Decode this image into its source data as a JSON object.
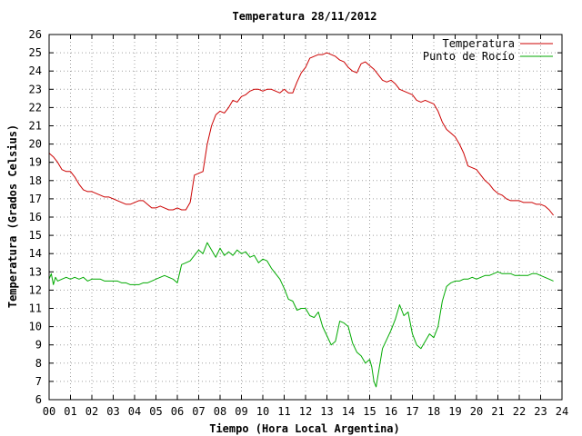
{
  "chart_data": {
    "type": "line",
    "title": "Temperatura 28/11/2012",
    "xlabel": "Tiempo (Hora Local Argentina)",
    "ylabel": "Temperatura (Grados Celsius)",
    "xlim": [
      0,
      24
    ],
    "ylim": [
      6,
      26
    ],
    "xticks": [
      0,
      1,
      2,
      3,
      4,
      5,
      6,
      7,
      8,
      9,
      10,
      11,
      12,
      13,
      14,
      15,
      16,
      17,
      18,
      19,
      20,
      21,
      22,
      23,
      24
    ],
    "xtick_labels": [
      "00",
      "01",
      "02",
      "03",
      "04",
      "05",
      "06",
      "07",
      "08",
      "09",
      "10",
      "11",
      "12",
      "13",
      "14",
      "15",
      "16",
      "17",
      "18",
      "19",
      "20",
      "21",
      "22",
      "23",
      "24"
    ],
    "yticks": [
      6,
      7,
      8,
      9,
      10,
      11,
      12,
      13,
      14,
      15,
      16,
      17,
      18,
      19,
      20,
      21,
      22,
      23,
      24,
      25,
      26
    ],
    "grid": true,
    "legend_position": "top-right",
    "series": [
      {
        "name": "Temperatura",
        "color": "#cc0000",
        "x": [
          0.0,
          0.2,
          0.4,
          0.6,
          0.8,
          1.0,
          1.2,
          1.4,
          1.6,
          1.8,
          2.0,
          2.2,
          2.4,
          2.6,
          2.8,
          3.0,
          3.2,
          3.4,
          3.6,
          3.8,
          4.0,
          4.2,
          4.4,
          4.6,
          4.8,
          5.0,
          5.2,
          5.4,
          5.6,
          5.8,
          6.0,
          6.2,
          6.4,
          6.6,
          6.8,
          7.0,
          7.2,
          7.4,
          7.6,
          7.8,
          8.0,
          8.2,
          8.4,
          8.6,
          8.8,
          9.0,
          9.2,
          9.4,
          9.6,
          9.8,
          10.0,
          10.2,
          10.4,
          10.6,
          10.8,
          11.0,
          11.2,
          11.4,
          11.6,
          11.8,
          12.0,
          12.2,
          12.4,
          12.6,
          12.8,
          13.0,
          13.2,
          13.4,
          13.6,
          13.8,
          14.0,
          14.2,
          14.4,
          14.6,
          14.8,
          15.0,
          15.2,
          15.4,
          15.6,
          15.8,
          16.0,
          16.2,
          16.4,
          16.6,
          16.8,
          17.0,
          17.2,
          17.4,
          17.6,
          17.8,
          18.0,
          18.2,
          18.4,
          18.6,
          18.8,
          19.0,
          19.2,
          19.4,
          19.6,
          19.8,
          20.0,
          20.2,
          20.4,
          20.6,
          20.8,
          21.0,
          21.2,
          21.4,
          21.6,
          21.8,
          22.0,
          22.2,
          22.4,
          22.6,
          22.8,
          23.0,
          23.2,
          23.4,
          23.6
        ],
        "y": [
          19.5,
          19.3,
          19.0,
          18.6,
          18.5,
          18.5,
          18.2,
          17.8,
          17.5,
          17.4,
          17.4,
          17.3,
          17.2,
          17.1,
          17.1,
          17.0,
          16.9,
          16.8,
          16.7,
          16.7,
          16.8,
          16.9,
          16.9,
          16.7,
          16.5,
          16.5,
          16.6,
          16.5,
          16.4,
          16.4,
          16.5,
          16.4,
          16.4,
          16.8,
          18.3,
          18.4,
          18.5,
          20.0,
          21.0,
          21.6,
          21.8,
          21.7,
          22.0,
          22.4,
          22.3,
          22.6,
          22.7,
          22.9,
          23.0,
          23.0,
          22.9,
          23.0,
          23.0,
          22.9,
          22.8,
          23.0,
          22.8,
          22.8,
          23.4,
          23.9,
          24.2,
          24.7,
          24.8,
          24.9,
          24.9,
          25.0,
          24.9,
          24.8,
          24.6,
          24.5,
          24.2,
          24.0,
          23.9,
          24.4,
          24.5,
          24.3,
          24.1,
          23.8,
          23.5,
          23.4,
          23.5,
          23.3,
          23.0,
          22.9,
          22.8,
          22.7,
          22.4,
          22.3,
          22.4,
          22.3,
          22.2,
          21.8,
          21.2,
          20.8,
          20.6,
          20.4,
          20.0,
          19.5,
          18.8,
          18.7,
          18.6,
          18.3,
          18.0,
          17.8,
          17.5,
          17.3,
          17.2,
          17.0,
          16.9,
          16.9,
          16.9,
          16.8,
          16.8,
          16.8,
          16.7,
          16.7,
          16.6,
          16.4,
          16.1
        ],
        "legend_label": "Temperatura"
      },
      {
        "name": "Punto de Rocío",
        "color": "#00aa00",
        "x": [
          0.0,
          0.1,
          0.2,
          0.3,
          0.4,
          0.6,
          0.8,
          1.0,
          1.2,
          1.4,
          1.6,
          1.8,
          2.0,
          2.2,
          2.4,
          2.6,
          2.8,
          3.0,
          3.2,
          3.4,
          3.6,
          3.8,
          4.0,
          4.2,
          4.4,
          4.6,
          4.8,
          5.0,
          5.2,
          5.4,
          5.6,
          5.8,
          6.0,
          6.2,
          6.4,
          6.6,
          6.8,
          7.0,
          7.2,
          7.4,
          7.6,
          7.8,
          8.0,
          8.2,
          8.4,
          8.6,
          8.8,
          9.0,
          9.2,
          9.4,
          9.6,
          9.8,
          10.0,
          10.2,
          10.4,
          10.6,
          10.8,
          11.0,
          11.2,
          11.4,
          11.6,
          11.8,
          12.0,
          12.2,
          12.4,
          12.6,
          12.8,
          13.0,
          13.2,
          13.4,
          13.6,
          13.8,
          14.0,
          14.2,
          14.4,
          14.6,
          14.8,
          15.0,
          15.1,
          15.2,
          15.3,
          15.4,
          15.6,
          15.8,
          16.0,
          16.2,
          16.4,
          16.6,
          16.8,
          17.0,
          17.2,
          17.4,
          17.6,
          17.8,
          18.0,
          18.2,
          18.4,
          18.6,
          18.8,
          19.0,
          19.2,
          19.4,
          19.6,
          19.8,
          20.0,
          20.2,
          20.4,
          20.6,
          20.8,
          21.0,
          21.2,
          21.4,
          21.6,
          21.8,
          22.0,
          22.2,
          22.4,
          22.6,
          22.8,
          23.0,
          23.2,
          23.4,
          23.6
        ],
        "y": [
          12.6,
          12.9,
          12.3,
          12.7,
          12.5,
          12.6,
          12.7,
          12.6,
          12.7,
          12.6,
          12.7,
          12.5,
          12.6,
          12.6,
          12.6,
          12.5,
          12.5,
          12.5,
          12.5,
          12.4,
          12.4,
          12.3,
          12.3,
          12.3,
          12.4,
          12.4,
          12.5,
          12.6,
          12.7,
          12.8,
          12.7,
          12.6,
          12.4,
          13.4,
          13.5,
          13.6,
          13.9,
          14.2,
          14.0,
          14.6,
          14.2,
          13.8,
          14.3,
          13.9,
          14.1,
          13.9,
          14.2,
          14.0,
          14.1,
          13.8,
          13.9,
          13.5,
          13.7,
          13.6,
          13.2,
          12.9,
          12.6,
          12.1,
          11.5,
          11.4,
          10.9,
          11.0,
          11.0,
          10.6,
          10.5,
          10.8,
          10.0,
          9.5,
          9.0,
          9.2,
          10.3,
          10.2,
          10.0,
          9.1,
          8.6,
          8.4,
          8.0,
          8.2,
          7.8,
          7.0,
          6.7,
          7.4,
          8.8,
          9.3,
          9.8,
          10.4,
          11.2,
          10.6,
          10.8,
          9.6,
          9.0,
          8.8,
          9.2,
          9.6,
          9.4,
          10.0,
          11.4,
          12.2,
          12.4,
          12.5,
          12.5,
          12.6,
          12.6,
          12.7,
          12.6,
          12.7,
          12.8,
          12.8,
          12.9,
          13.0,
          12.9,
          12.9,
          12.9,
          12.8,
          12.8,
          12.8,
          12.8,
          12.9,
          12.9,
          12.8,
          12.7,
          12.6,
          12.5
        ],
        "legend_label": "Punto de Rocío"
      }
    ]
  }
}
